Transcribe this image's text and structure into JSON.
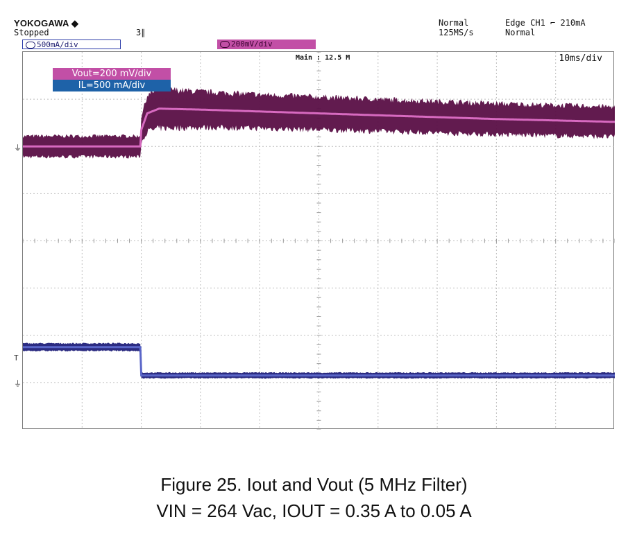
{
  "header": {
    "brand": "YOKOGAWA ◆",
    "status": "Stopped",
    "marker_top": "3∥",
    "mode": "Normal",
    "sample_rate": "125MS/s",
    "trigger": "Edge CH1 ⌐ 210mA",
    "trigger_mode": "Normal",
    "ch1_scale": "500mA/div",
    "ch2_scale": "200mV/div",
    "main_info": "Main : 12.5 M",
    "timebase": "10ms/div"
  },
  "legend": {
    "vout": "Vout=200 mV/div",
    "il": "IL=500 mA/div"
  },
  "caption": {
    "line1": "Figure 25. Iout and Vout (5 MHz Filter)",
    "line2": "VIN = 264 Vac, IOUT = 0.35 A to 0.05 A"
  },
  "colors": {
    "vout_band": "#5a0f46",
    "vout_center": "#d76ac0",
    "il_band": "#20207a",
    "il_center": "#5a66c8",
    "grid": "#bdbdbd"
  },
  "chart_data": {
    "type": "line",
    "title": "",
    "xlabel": "",
    "ylabel": "",
    "x_units": "ms",
    "x_range": [
      0,
      100
    ],
    "divisions": {
      "x": 10,
      "y": 8
    },
    "grid": true,
    "series": [
      {
        "name": "Vout",
        "units": "div",
        "x": [
          0,
          19.9,
          20.0,
          21,
          23,
          30,
          40,
          60,
          80,
          100
        ],
        "y": [
          6.0,
          6.0,
          6.35,
          6.7,
          6.8,
          6.78,
          6.74,
          6.66,
          6.58,
          6.52
        ],
        "band_halfwidth_div": [
          0.22,
          0.22,
          0.28,
          0.38,
          0.42,
          0.38,
          0.36,
          0.34,
          0.33,
          0.32
        ]
      },
      {
        "name": "IL",
        "units": "div",
        "x": [
          0,
          19.9,
          20.0,
          100
        ],
        "y": [
          1.75,
          1.75,
          1.15,
          1.15
        ],
        "band_halfwidth_div": [
          0.08,
          0.08,
          0.06,
          0.06
        ]
      }
    ]
  }
}
